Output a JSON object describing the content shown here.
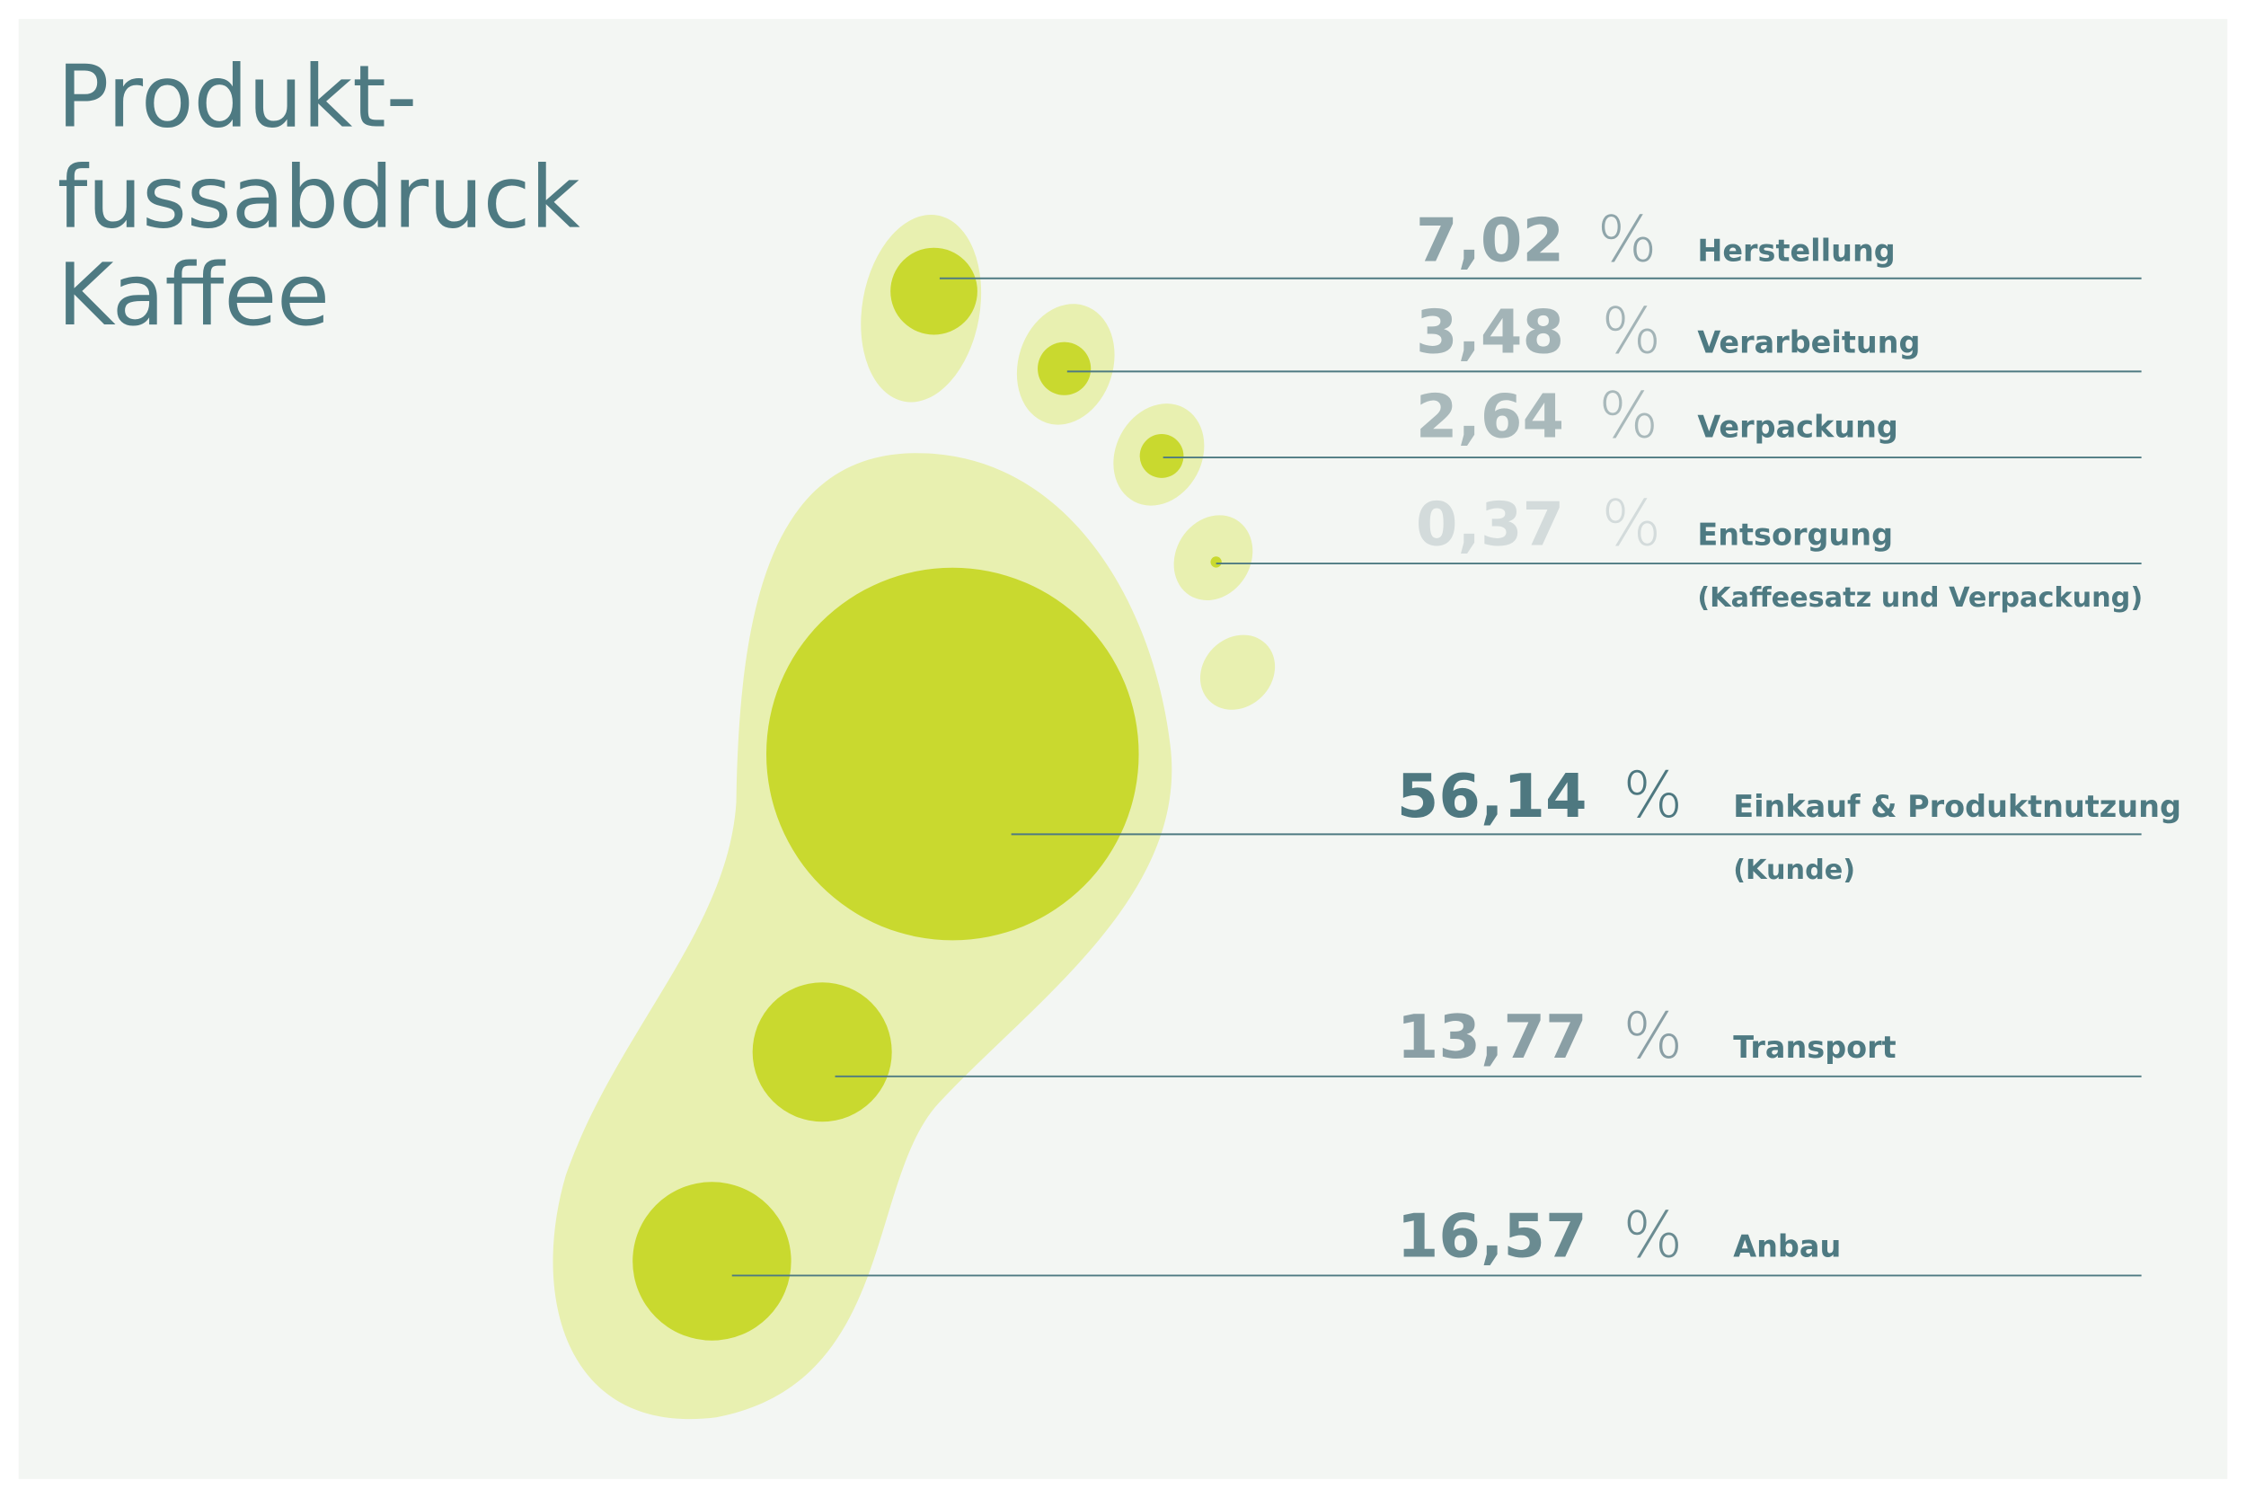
{
  "chart_data": {
    "type": "bubble",
    "title": [
      "Produkt-",
      "fussabdruck",
      "Kaffee"
    ],
    "unit": "%",
    "categories": [
      "Herstellung",
      "Verarbeitung",
      "Verpackung",
      "Entsorgung",
      "Einkauf & Produktnutzung",
      "Transport",
      "Anbau"
    ],
    "sublabels": [
      null,
      null,
      null,
      "(Kaffeesatz und Verpackung)",
      "(Kunde)",
      null,
      null
    ],
    "values": [
      7.02,
      3.48,
      2.64,
      0.37,
      56.14,
      13.77,
      16.57
    ],
    "value_labels": [
      "7,02",
      "3,48",
      "2,64",
      "0,37",
      "56,14",
      "13,77",
      "16,57"
    ],
    "label_colors": [
      "#8fa5aa",
      "#a3b4b7",
      "#a9b9bb",
      "#d3dbdb",
      "#4e7880",
      "#8a9fa5",
      "#6a8b91"
    ],
    "color": "#c9d92f",
    "foot_color": "#e8f0b0"
  }
}
